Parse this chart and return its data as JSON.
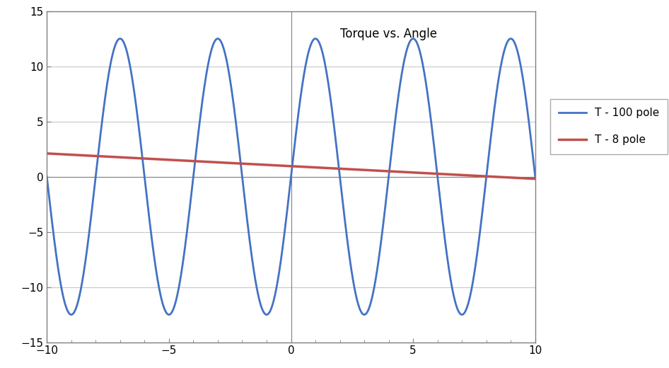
{
  "title": "Torque vs. Angle",
  "xlim": [
    -10,
    10
  ],
  "ylim": [
    -15,
    15
  ],
  "xticks": [
    -10,
    -5,
    0,
    5,
    10
  ],
  "yticks": [
    -15,
    -10,
    -5,
    0,
    5,
    10,
    15
  ],
  "sine_amplitude": 12.5,
  "sine_num_cycles": 5,
  "sine_color": "#4472C4",
  "sine_linewidth": 2.0,
  "sine_label": "T - 100 pole",
  "line_slope": -0.115,
  "line_intercept": 0.95,
  "line_color": "#C0504D",
  "line_linewidth": 2.5,
  "line_label": "T - 8 pole",
  "plot_bg_color": "#FFFFFF",
  "fig_bg_color": "#FFFFFF",
  "grid_color": "#C8C8C8",
  "grid_linewidth": 0.8,
  "title_fontsize": 12,
  "tick_fontsize": 11,
  "legend_fontsize": 11,
  "border_color": "#808080",
  "border_linewidth": 1.0
}
